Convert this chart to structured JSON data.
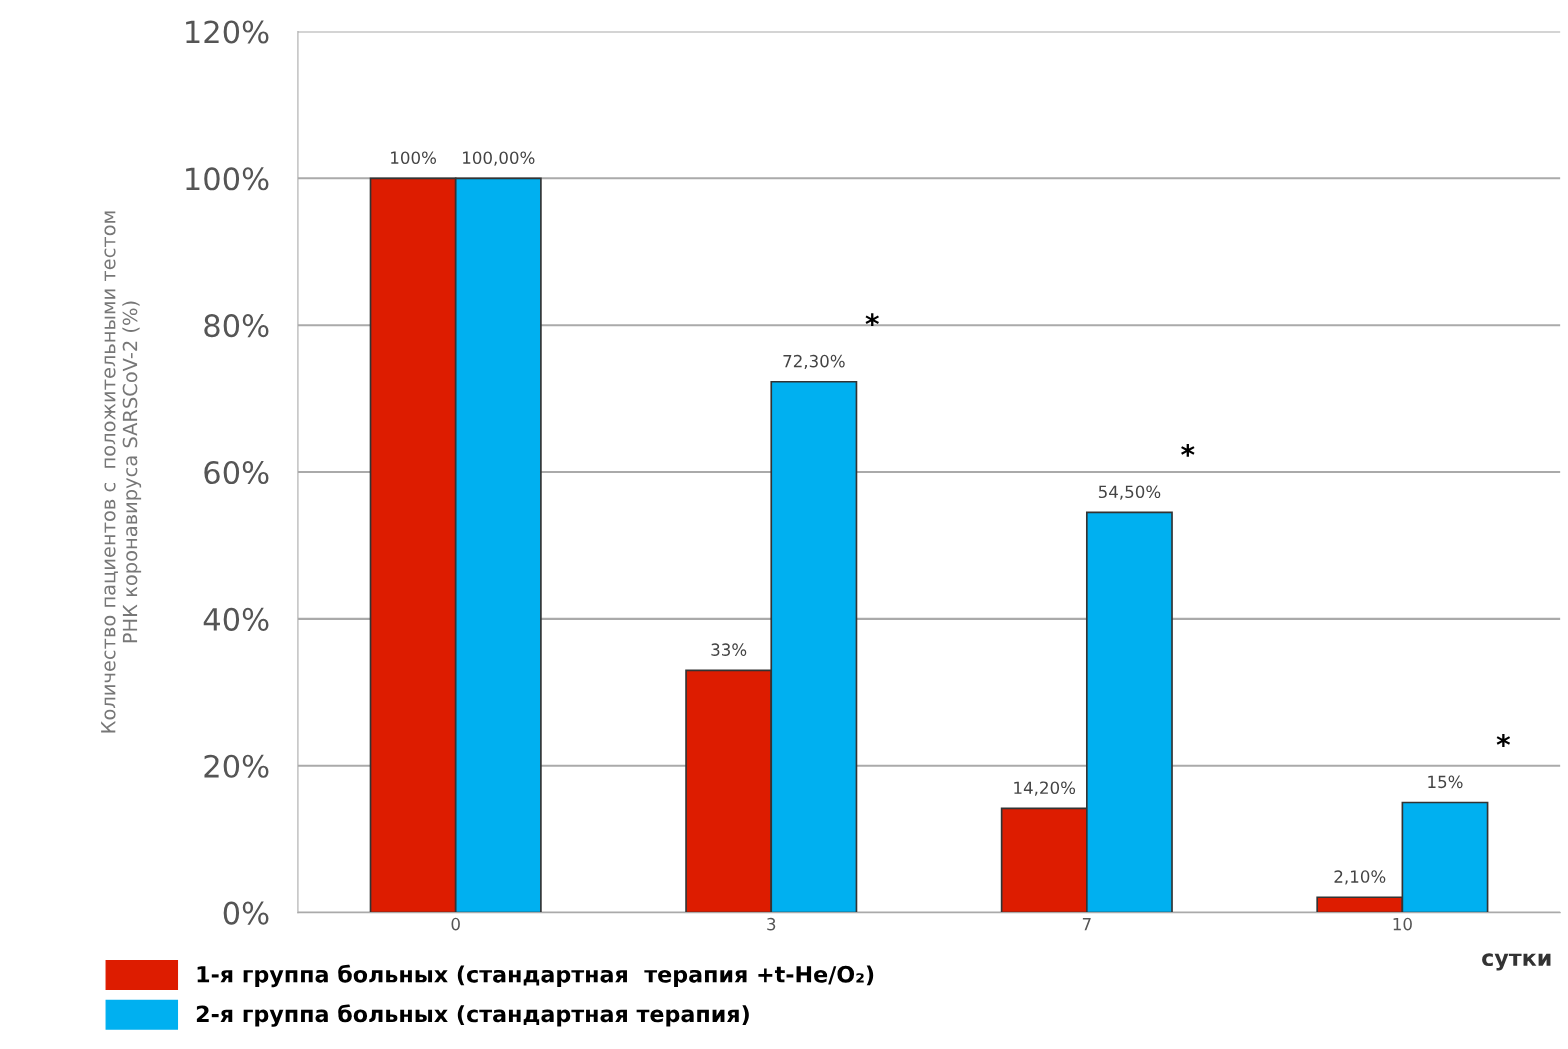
{
  "chart_data": {
    "type": "bar",
    "ylabel": "Количество пациентов с  положительными тестом\nРНК коронавируса SARSCoV-2 (%)",
    "xlabel": "сутки",
    "categories": [
      "0",
      "3",
      "7",
      "10"
    ],
    "series": [
      {
        "name": "1-я группа больных (стандартная  терапия +t-He/O₂)",
        "color": "#dd1c00",
        "values": [
          100,
          33,
          14.2,
          2.1
        ],
        "value_labels": [
          "100%",
          "33%",
          "14,20%",
          "2,10%"
        ]
      },
      {
        "name": "2-я группа больных (стандартная терапия)",
        "color": "#00b0f0",
        "values": [
          100,
          72.3,
          54.5,
          15
        ],
        "value_labels": [
          "100,00%",
          "72,30%",
          "54,50%",
          "15%"
        ]
      }
    ],
    "ylim": [
      0,
      120
    ],
    "yticks": [
      {
        "value": 0,
        "label": "0%"
      },
      {
        "value": 20,
        "label": "20%"
      },
      {
        "value": 40,
        "label": "40%"
      },
      {
        "value": 60,
        "label": "60%"
      },
      {
        "value": 80,
        "label": "80%"
      },
      {
        "value": 100,
        "label": "100%"
      },
      {
        "value": 120,
        "label": "120%"
      }
    ],
    "annotations": [
      "*",
      "*",
      "*"
    ],
    "grid": "y",
    "legend": "bottom left"
  }
}
